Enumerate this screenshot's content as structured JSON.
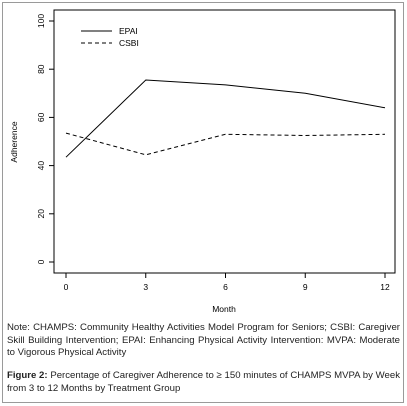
{
  "chart_data": {
    "type": "line",
    "title": "",
    "xlabel": "Month",
    "ylabel": "Adherence",
    "x": [
      0,
      3,
      6,
      9,
      12
    ],
    "xlim": [
      -0.5,
      12.5
    ],
    "ylim": [
      0,
      100
    ],
    "x_ticks": [
      "0",
      "3",
      "6",
      "9",
      "12"
    ],
    "y_ticks": [
      "0",
      "20",
      "40",
      "60",
      "80",
      "100"
    ],
    "y_tick_values": [
      0,
      20,
      40,
      60,
      80,
      100
    ],
    "x_tick_values": [
      0,
      3,
      6,
      9,
      12
    ],
    "grid": false,
    "legend_position": "top-left",
    "series": [
      {
        "name": "EPAI",
        "style": "solid",
        "color": "#000000",
        "x": [
          0,
          3,
          6,
          9,
          12
        ],
        "values": [
          43.5,
          75.5,
          73.5,
          70,
          64
        ]
      },
      {
        "name": "CSBI",
        "style": "dashed",
        "color": "#000000",
        "x": [
          0,
          3,
          6,
          9,
          12
        ],
        "values": [
          53.5,
          44.5,
          53,
          52.5,
          53
        ]
      }
    ]
  },
  "note_text": "Note: CHAMPS: Community Healthy Activities Model Program for Seniors; CSBI: Caregiver Skill Building Intervention; EPAI: Enhancing Physical Activity Intervention: MVPA: Moderate to Vigorous Physical Activity",
  "caption": {
    "label": "Figure 2:",
    "text": " Percentage of Caregiver Adherence to ≥ 150 minutes of CHAMPS MVPA by Week from 3 to 12 Months by Treatment Group"
  }
}
